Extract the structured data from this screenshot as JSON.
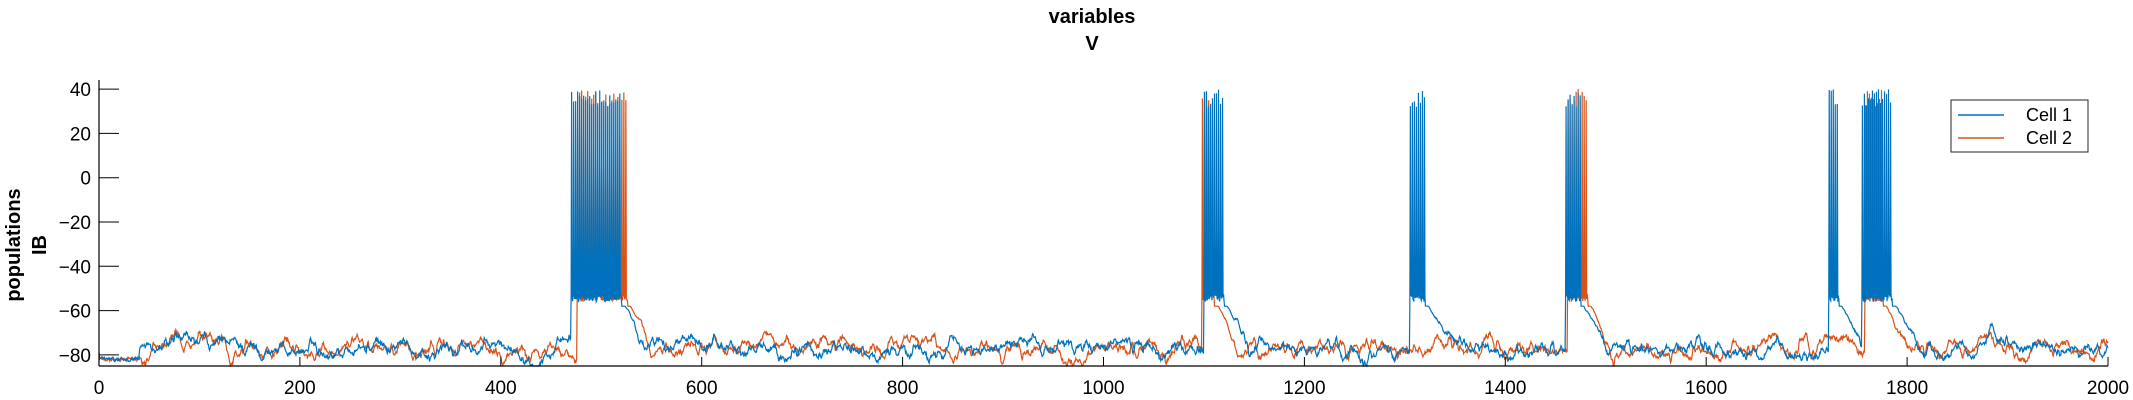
{
  "chart_data": {
    "type": "line",
    "title": [
      "variables",
      "V"
    ],
    "ylabel": [
      "populations",
      "IB"
    ],
    "xlabel": "",
    "xlim": [
      0,
      2000
    ],
    "ylim": [
      -85,
      45
    ],
    "xticks": [
      0,
      200,
      400,
      600,
      800,
      1000,
      1200,
      1400,
      1600,
      1800,
      2000
    ],
    "yticks": [
      -80,
      -60,
      -40,
      -20,
      0,
      20,
      40
    ],
    "grid": false,
    "legend_position": "top-right",
    "baseline": -77,
    "spike_peak": 40,
    "series": [
      {
        "name": "Cell 1",
        "color": "#0072BD",
        "bursts": [
          [
            470,
            520
          ],
          [
            1100,
            1120
          ],
          [
            1305,
            1320
          ],
          [
            1460,
            1475
          ],
          [
            1722,
            1732
          ],
          [
            1755,
            1785
          ]
        ]
      },
      {
        "name": "Cell 2",
        "color": "#D95319",
        "bursts": [
          [
            476,
            526
          ],
          [
            1098,
            1110
          ],
          [
            1462,
            1482
          ],
          [
            1758,
            1776
          ]
        ]
      }
    ]
  }
}
